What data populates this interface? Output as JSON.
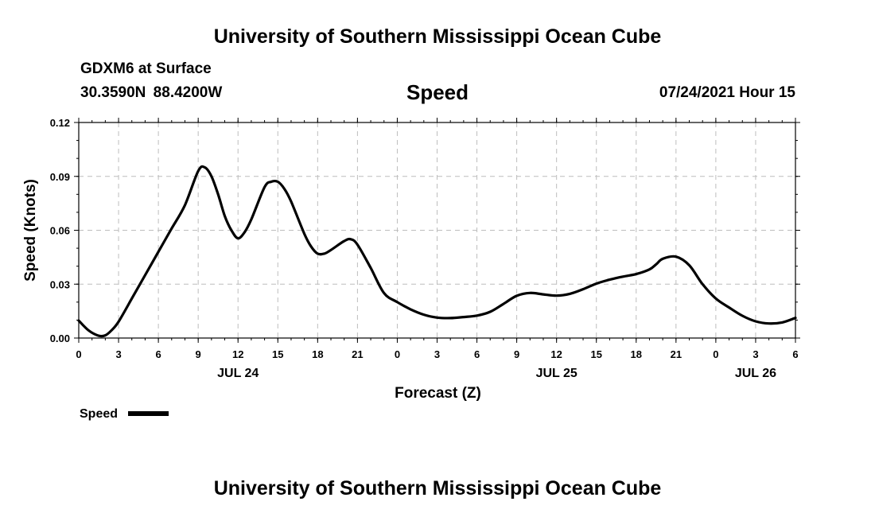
{
  "header": {
    "title": "University of Southern Mississippi Ocean Cube",
    "station": "GDXM6 at Surface",
    "coordinates": "30.3590N  88.4200W",
    "variable": "Speed",
    "datetime": "07/24/2021 Hour 15"
  },
  "footer": {
    "title": "University of Southern Mississippi Ocean Cube"
  },
  "chart_data": {
    "type": "line",
    "title": "Speed",
    "xlabel": "Forecast (Z)",
    "ylabel": "Speed (Knots)",
    "ylim": [
      0,
      0.12
    ],
    "xlim": [
      0,
      54
    ],
    "x_unit": "hours since JUL 24 00Z",
    "grid": true,
    "y_ticks": [
      0,
      0.03,
      0.06,
      0.09,
      0.12
    ],
    "y_tick_labels": [
      "0.00",
      "0.03",
      "0.06",
      "0.09",
      "0.12"
    ],
    "x_ticks": [
      0,
      3,
      6,
      9,
      12,
      15,
      18,
      21,
      24,
      27,
      30,
      33,
      36,
      39,
      42,
      45,
      48,
      51,
      54
    ],
    "x_tick_labels": [
      "0",
      "3",
      "6",
      "9",
      "12",
      "15",
      "18",
      "21",
      "0",
      "3",
      "6",
      "9",
      "12",
      "15",
      "18",
      "21",
      "0",
      "3",
      "6"
    ],
    "date_labels": [
      {
        "x": 12,
        "label": "JUL 24"
      },
      {
        "x": 36,
        "label": "JUL 25"
      },
      {
        "x": 51,
        "label": "JUL 26"
      }
    ],
    "legend": {
      "label": "Speed",
      "placement": "bottom-left"
    },
    "series": [
      {
        "name": "Speed",
        "color": "#000000",
        "x": [
          0,
          0.75,
          1.5,
          2,
          2.5,
          3,
          4,
          5,
          6,
          7,
          8,
          9,
          9.5,
          10,
          10.5,
          11,
          11.5,
          12,
          12.5,
          13,
          14,
          14.5,
          15,
          15.5,
          16,
          17,
          17.5,
          18,
          18.5,
          19,
          20,
          20.5,
          21,
          22,
          23,
          24,
          25,
          26,
          27,
          28,
          29,
          30,
          31,
          32,
          33,
          34,
          35,
          36,
          37,
          38,
          39,
          40,
          41,
          42,
          43,
          43.5,
          44,
          45,
          46,
          47,
          48,
          49,
          50,
          51,
          52,
          53,
          54
        ],
        "values": [
          0.0097,
          0.0042,
          0.0013,
          0.0015,
          0.0045,
          0.0091,
          0.022,
          0.035,
          0.048,
          0.061,
          0.074,
          0.093,
          0.095,
          0.09,
          0.08,
          0.068,
          0.06,
          0.0555,
          0.059,
          0.066,
          0.084,
          0.087,
          0.087,
          0.083,
          0.076,
          0.058,
          0.051,
          0.047,
          0.047,
          0.049,
          0.054,
          0.055,
          0.052,
          0.039,
          0.025,
          0.02,
          0.016,
          0.013,
          0.0114,
          0.0111,
          0.0117,
          0.0125,
          0.0146,
          0.019,
          0.0235,
          0.0251,
          0.0243,
          0.0236,
          0.0246,
          0.0272,
          0.0303,
          0.0325,
          0.0342,
          0.0356,
          0.0382,
          0.041,
          0.0441,
          0.0453,
          0.0405,
          0.03,
          0.022,
          0.017,
          0.0124,
          0.0093,
          0.0081,
          0.0087,
          0.0112
        ]
      }
    ]
  }
}
